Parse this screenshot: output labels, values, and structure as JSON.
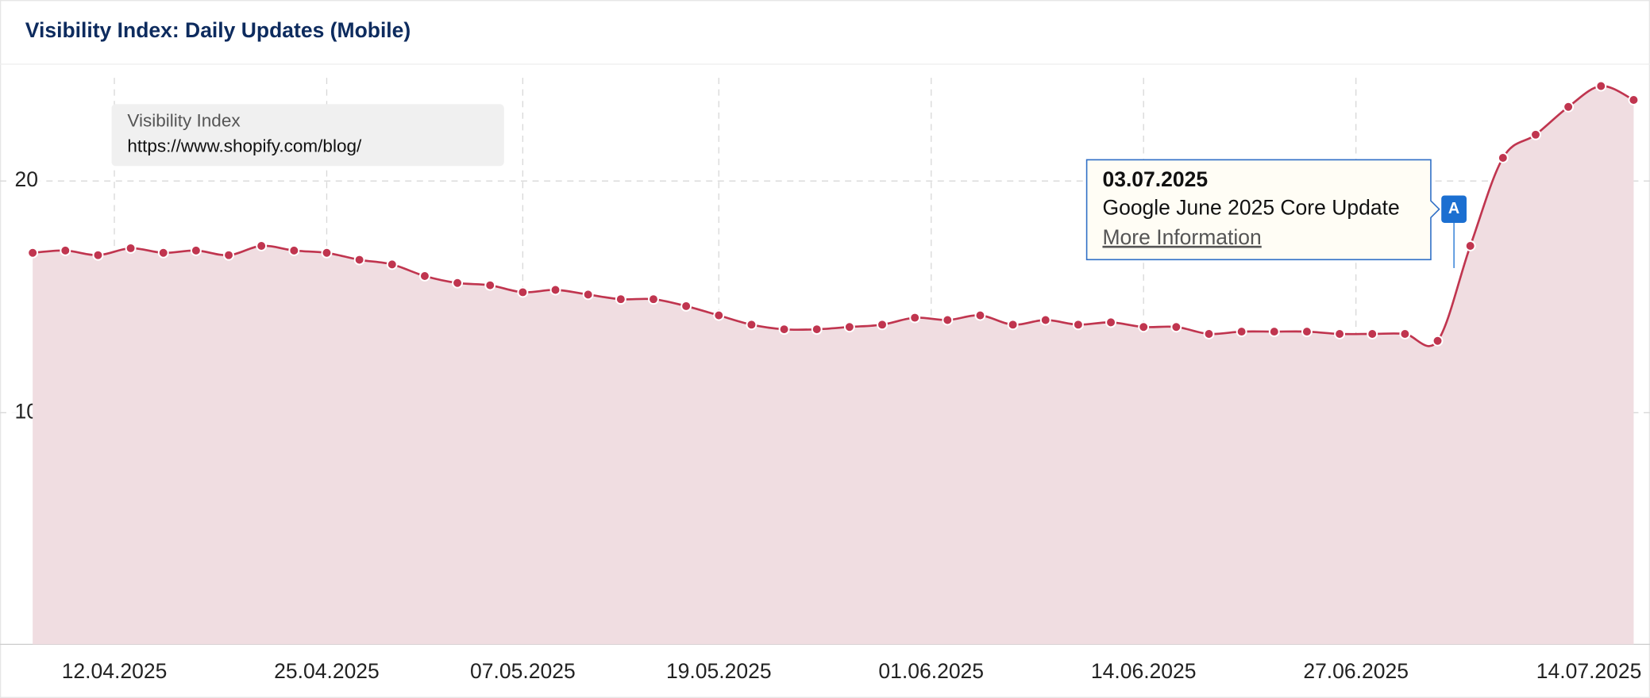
{
  "chart_data": {
    "type": "area",
    "title": "Visibility Index: Daily Updates (Mobile)",
    "x": [
      "07.04.2025",
      "09.04.2025",
      "11.04.2025",
      "13.04.2025",
      "15.04.2025",
      "17.04.2025",
      "19.04.2025",
      "21.04.2025",
      "23.04.2025",
      "25.04.2025",
      "27.04.2025",
      "29.04.2025",
      "01.05.2025",
      "03.05.2025",
      "05.05.2025",
      "07.05.2025",
      "09.05.2025",
      "11.05.2025",
      "13.05.2025",
      "15.05.2025",
      "17.05.2025",
      "19.05.2025",
      "21.05.2025",
      "23.05.2025",
      "25.05.2025",
      "27.05.2025",
      "29.05.2025",
      "31.05.2025",
      "02.06.2025",
      "04.06.2025",
      "06.06.2025",
      "08.06.2025",
      "10.06.2025",
      "12.06.2025",
      "14.06.2025",
      "16.06.2025",
      "18.06.2025",
      "20.06.2025",
      "22.06.2025",
      "24.06.2025",
      "26.06.2025",
      "28.06.2025",
      "30.06.2025",
      "02.07.2025",
      "04.07.2025",
      "06.07.2025",
      "08.07.2025",
      "10.07.2025",
      "12.07.2025",
      "14.07.2025"
    ],
    "series": [
      {
        "name": "Visibility Index",
        "url": "https://www.shopify.com/blog/",
        "color": "#c0354f",
        "fill": "#f0dde1",
        "values": [
          16.9,
          17.0,
          16.8,
          17.1,
          16.9,
          17.0,
          16.8,
          17.2,
          17.0,
          16.9,
          16.6,
          16.4,
          15.9,
          15.6,
          15.5,
          15.2,
          15.3,
          15.1,
          14.9,
          14.9,
          14.6,
          14.2,
          13.8,
          13.6,
          13.6,
          13.7,
          13.8,
          14.1,
          14.0,
          14.2,
          13.8,
          14.0,
          13.8,
          13.9,
          13.7,
          13.7,
          13.4,
          13.5,
          13.5,
          13.5,
          13.4,
          13.4,
          13.4,
          13.1,
          17.2,
          21.0,
          22.0,
          23.2,
          24.1,
          23.5
        ]
      }
    ],
    "xlim": [
      "05.04.2025",
      "15.07.2025"
    ],
    "xticks": [
      "12.04.2025",
      "25.04.2025",
      "07.05.2025",
      "19.05.2025",
      "01.06.2025",
      "14.06.2025",
      "27.06.2025",
      "14.07.2025"
    ],
    "ylim": [
      0,
      25
    ],
    "yticks": [
      10,
      20
    ],
    "grid": true,
    "annotations": [
      {
        "date": "03.07.2025",
        "marker": "A",
        "title": "Google June 2025 Core Update",
        "link": "More Information"
      }
    ]
  }
}
